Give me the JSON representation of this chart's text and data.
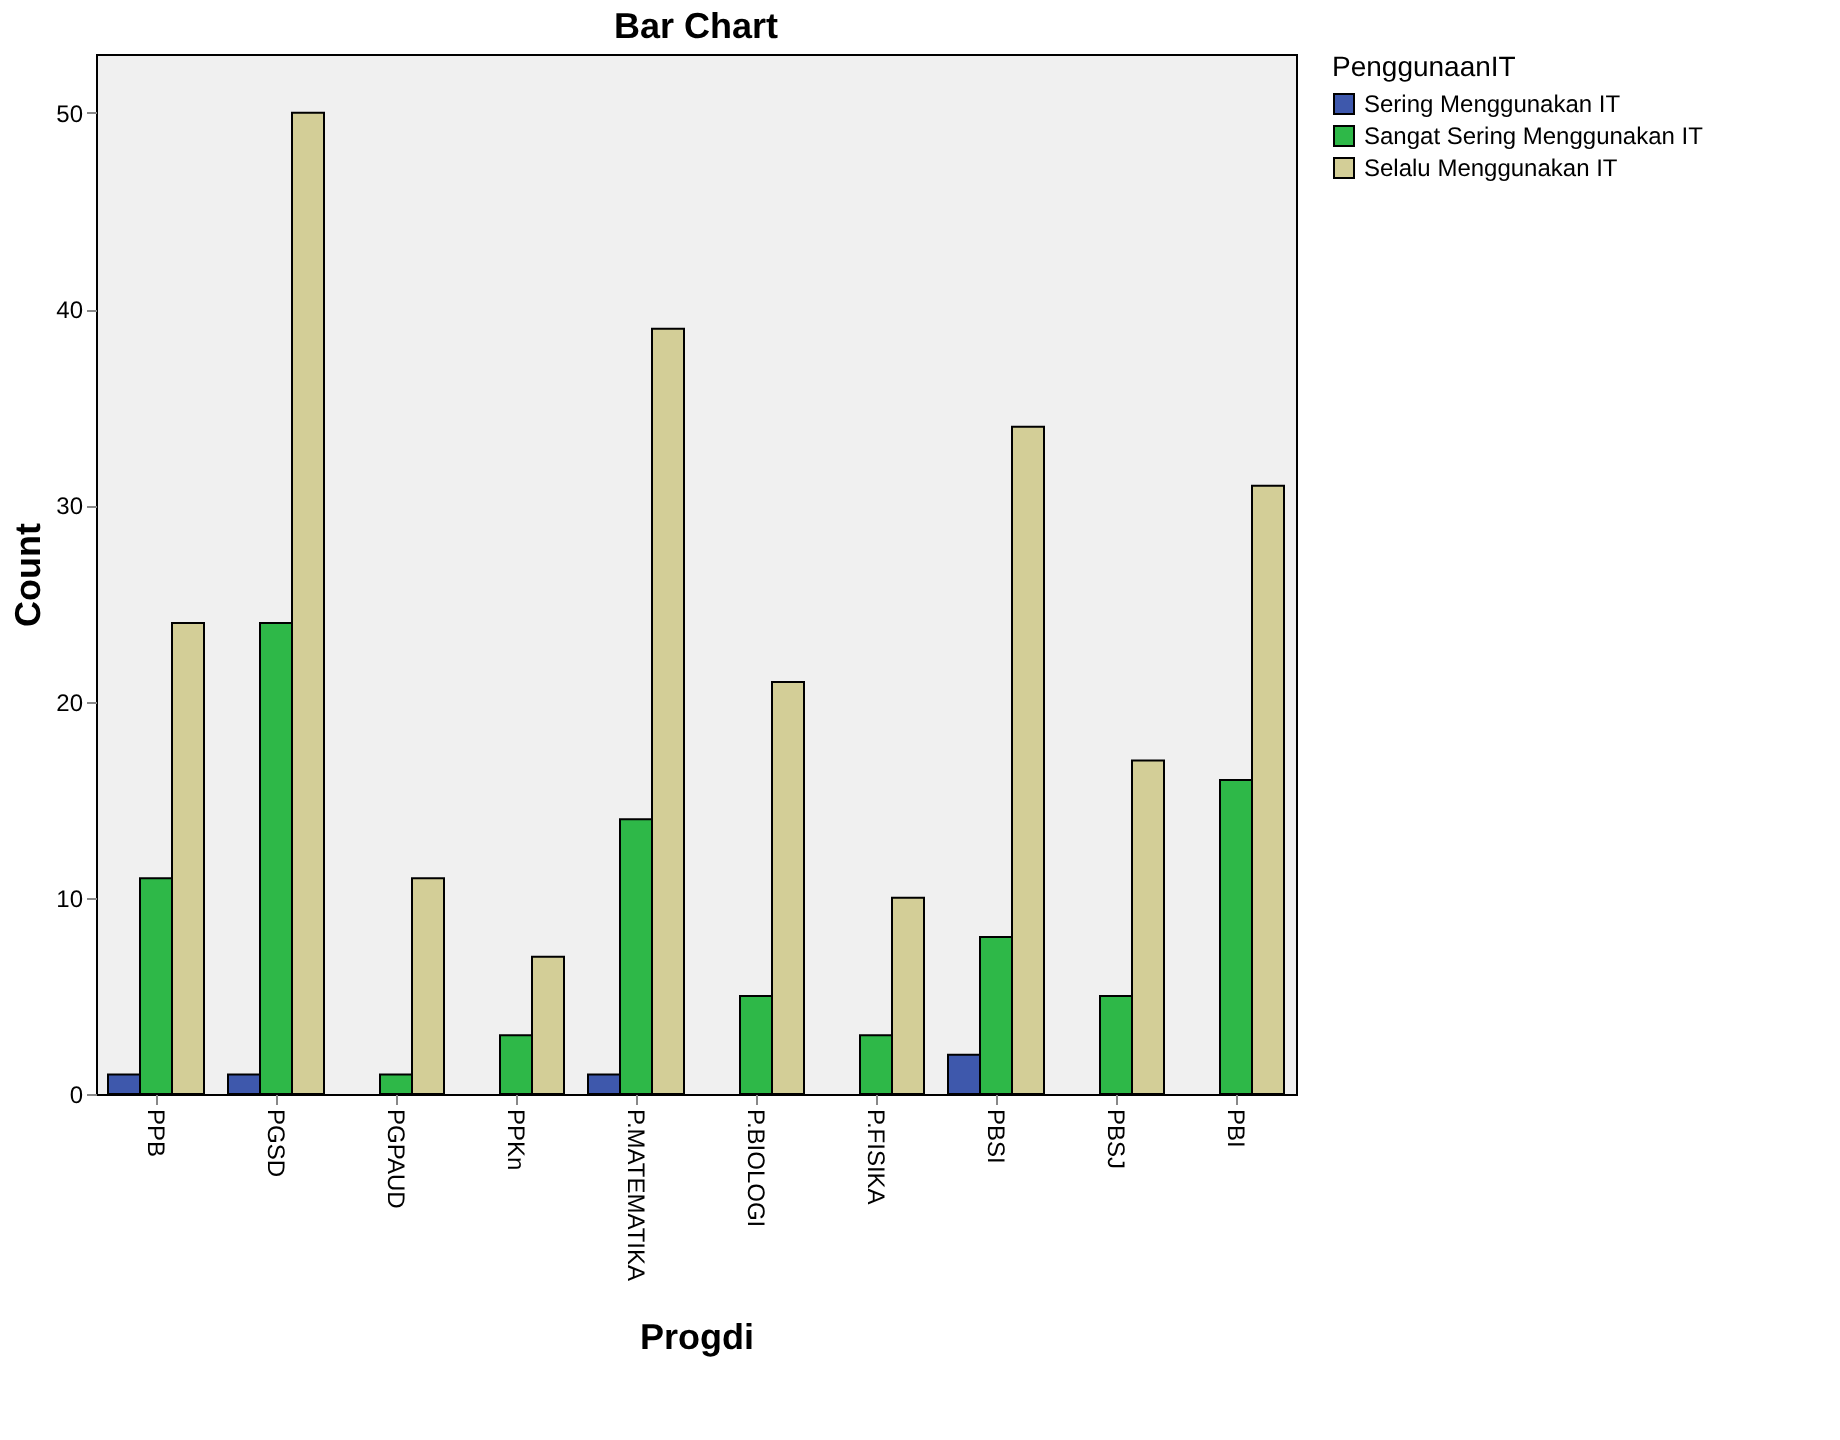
{
  "chart_data": {
    "type": "bar",
    "title": "Bar Chart",
    "xlabel": "Progdi",
    "ylabel": "Count",
    "legend_title": "PenggunaanIT",
    "categories": [
      "PPB",
      "PGSD",
      "PGPAUD",
      "PPKn",
      "P.MATEMATIKA",
      "P.BIOLOGI",
      "P.FISIKA",
      "PBSI",
      "PBSJ",
      "PBI"
    ],
    "series": [
      {
        "name": "Sering Menggunakan IT",
        "color": "#3e58ac",
        "values": [
          1,
          1,
          null,
          null,
          1,
          null,
          null,
          2,
          null,
          null
        ]
      },
      {
        "name": "Sangat Sering Menggunakan IT",
        "color": "#2eb848",
        "values": [
          11,
          24,
          1,
          3,
          14,
          5,
          3,
          8,
          5,
          16
        ]
      },
      {
        "name": "Selalu Menggunakan IT",
        "color": "#d3ce97",
        "values": [
          24,
          50,
          11,
          7,
          39,
          21,
          10,
          34,
          17,
          31
        ]
      }
    ],
    "ylim": [
      0,
      53
    ],
    "yticks": [
      0,
      10,
      20,
      30,
      40,
      50
    ],
    "grid": false,
    "legend": "top right"
  }
}
